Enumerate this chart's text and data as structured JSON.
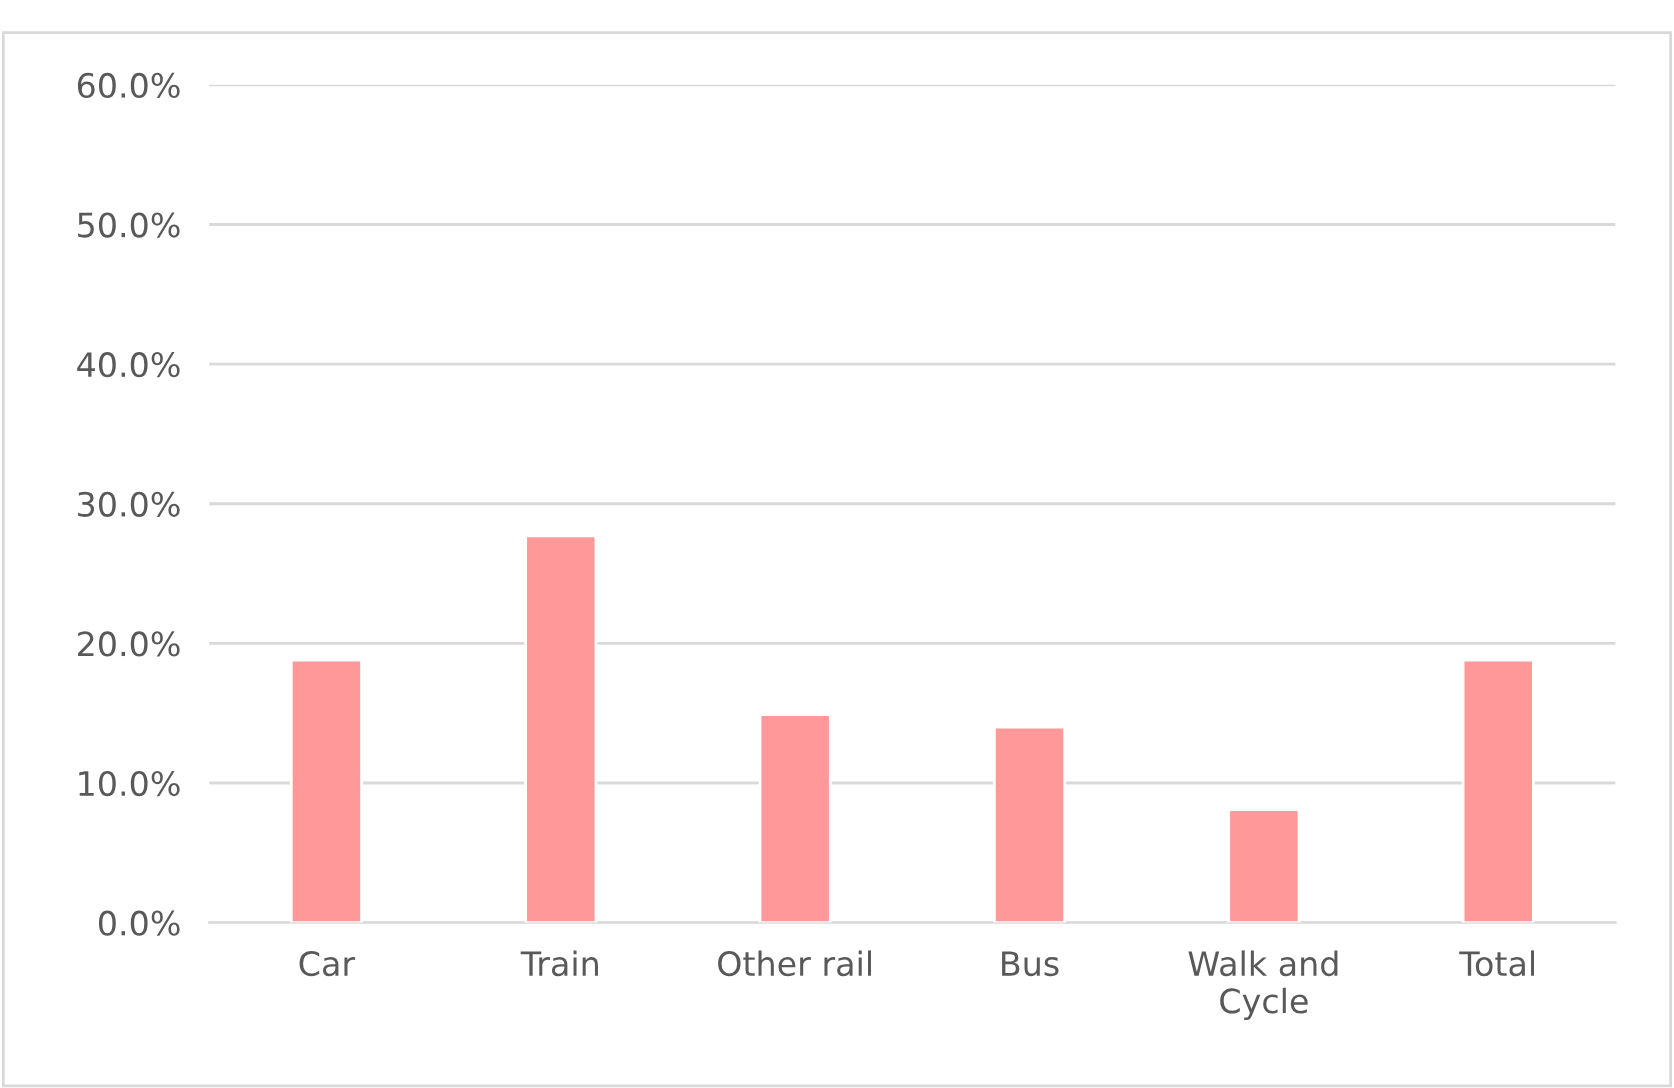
{
  "chart_data": {
    "type": "bar",
    "categories": [
      "Car",
      "Train",
      "Other rail",
      "Bus",
      "Walk and Cycle",
      "Total"
    ],
    "values": [
      18.8,
      27.7,
      14.9,
      14.0,
      8.1,
      18.8
    ],
    "color": "#ff9999",
    "ylim": [
      0,
      60
    ],
    "yticks": [
      {
        "value": 0,
        "label": "0.0%"
      },
      {
        "value": 10,
        "label": "10.0%"
      },
      {
        "value": 20,
        "label": "20.0%"
      },
      {
        "value": 30,
        "label": "30.0%"
      },
      {
        "value": 40,
        "label": "40.0%"
      },
      {
        "value": 50,
        "label": "50.0%"
      },
      {
        "value": 60,
        "label": "60.0%"
      }
    ],
    "grid": "y"
  }
}
